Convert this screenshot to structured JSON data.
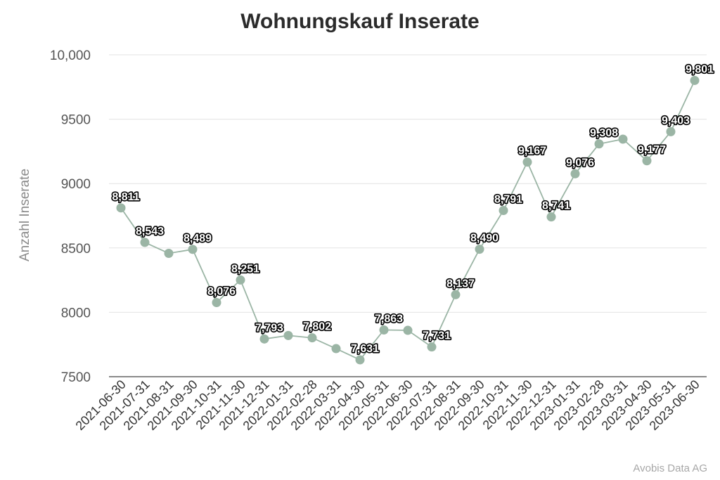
{
  "chart_data": {
    "type": "line",
    "title": "Wohnungskauf Inserate",
    "xlabel": "",
    "ylabel": "Anzahl Inserate",
    "ylim": [
      7500,
      10000
    ],
    "yticks": [
      7500,
      8000,
      8500,
      9000,
      9500,
      10000
    ],
    "ytick_labels": [
      "7500",
      "8000",
      "8500",
      "9000",
      "9500",
      "10,000"
    ],
    "grid": true,
    "color": "#9bb5a5",
    "categories": [
      "2021-06-30",
      "2021-07-31",
      "2021-08-31",
      "2021-09-30",
      "2021-10-31",
      "2021-11-30",
      "2021-12-31",
      "2022-01-31",
      "2022-02-28",
      "2022-03-31",
      "2022-04-30",
      "2022-05-31",
      "2022-06-30",
      "2022-07-31",
      "2022-08-31",
      "2022-09-30",
      "2022-10-31",
      "2022-11-30",
      "2022-12-31",
      "2023-01-31",
      "2023-02-28",
      "2023-03-31",
      "2023-04-30",
      "2023-05-31",
      "2023-06-30"
    ],
    "series": [
      {
        "values": [
          8811,
          8543,
          8458,
          8489,
          8076,
          8251,
          7793,
          7820,
          7802,
          7718,
          7631,
          7863,
          7860,
          7731,
          8137,
          8490,
          8791,
          9167,
          8741,
          9076,
          9308,
          9345,
          9177,
          9403,
          9801
        ],
        "data_labels": [
          "8,811",
          "8,543",
          "",
          "8,489",
          "8,076",
          "8,251",
          "7,793",
          "",
          "7,802",
          "",
          "7,631",
          "7,863",
          "",
          "7,731",
          "8,137",
          "8,490",
          "8,791",
          "9,167",
          "8,741",
          "9,076",
          "9,308",
          "",
          "9,177",
          "9,403",
          "9,801"
        ]
      }
    ]
  },
  "footer": {
    "credit": "Avobis Data AG"
  }
}
